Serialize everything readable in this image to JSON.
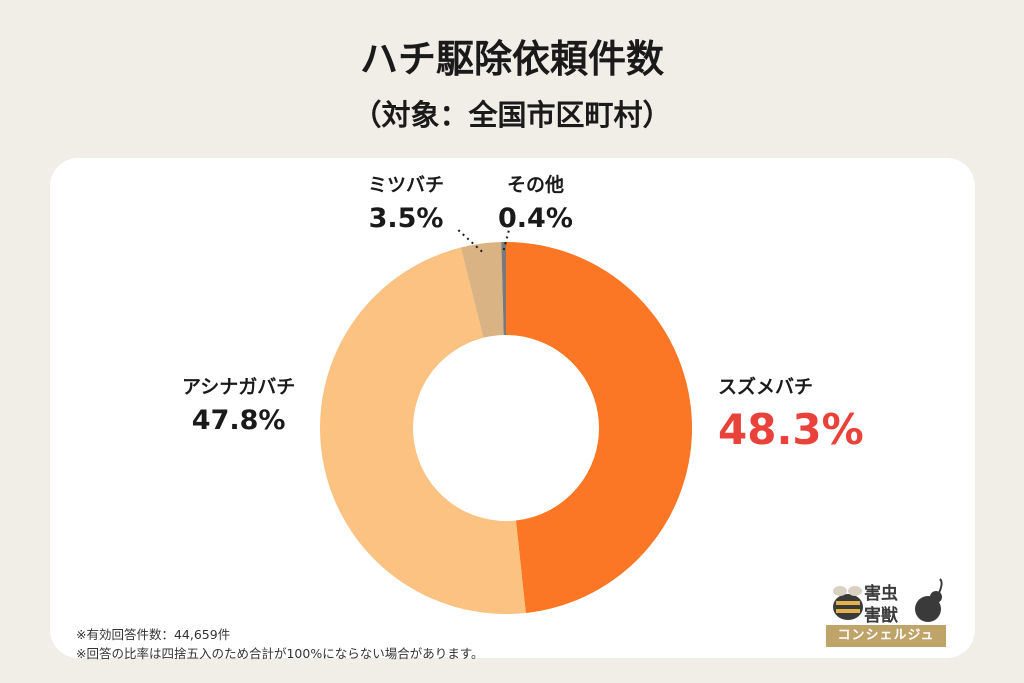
{
  "title": "ハチ駆除依頼件数",
  "subtitle": "（対象：全国市区町村）",
  "chart_data": {
    "type": "pie",
    "categories": [
      "スズメバチ",
      "アシナガバチ",
      "ミツバチ",
      "その他"
    ],
    "values": [
      48.3,
      47.8,
      3.5,
      0.4
    ],
    "value_labels": [
      "48.3%",
      "47.8%",
      "3.5%",
      "0.4%"
    ],
    "colors": [
      "#fb7625",
      "#fbc282",
      "#dab385",
      "#7a7a7a"
    ],
    "highlight_color": "#e8423b",
    "donut": true
  },
  "footnotes": [
    "※有効回答件数：44,659件",
    "※回答の比率は四捨五入のため合計が100%にならない場合があります。"
  ],
  "logo": {
    "line1": "害虫",
    "line2": "害獣",
    "band": "コンシェルジュ"
  }
}
